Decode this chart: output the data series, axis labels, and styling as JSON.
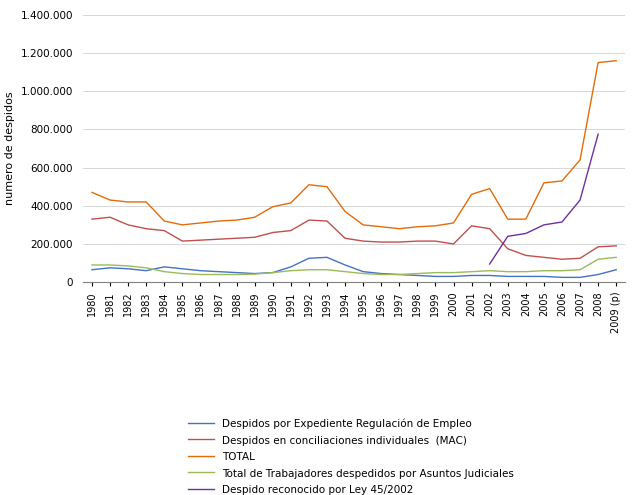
{
  "year_labels": [
    "1980",
    "1981",
    "1982",
    "1983",
    "1984",
    "1985",
    "1986",
    "1987",
    "1988",
    "1989",
    "1990",
    "1991",
    "1992",
    "1993",
    "1994",
    "1995",
    "1996",
    "1997",
    "1998",
    "1999",
    "2000",
    "2001",
    "2002",
    "2003",
    "2004",
    "2005",
    "2006",
    "2007",
    "2008",
    "2009 (p)"
  ],
  "blue": [
    65000,
    75000,
    70000,
    60000,
    80000,
    70000,
    60000,
    55000,
    50000,
    45000,
    50000,
    80000,
    125000,
    130000,
    90000,
    55000,
    45000,
    40000,
    35000,
    30000,
    30000,
    35000,
    35000,
    30000,
    30000,
    30000,
    25000,
    25000,
    40000,
    65000
  ],
  "red": [
    330000,
    340000,
    300000,
    280000,
    270000,
    215000,
    220000,
    225000,
    230000,
    235000,
    260000,
    270000,
    325000,
    320000,
    230000,
    215000,
    210000,
    210000,
    215000,
    215000,
    200000,
    295000,
    280000,
    175000,
    140000,
    130000,
    120000,
    125000,
    185000,
    190000
  ],
  "orange": [
    470000,
    430000,
    420000,
    420000,
    320000,
    300000,
    310000,
    320000,
    325000,
    340000,
    395000,
    415000,
    510000,
    500000,
    370000,
    300000,
    290000,
    280000,
    290000,
    295000,
    310000,
    460000,
    490000,
    330000,
    330000,
    520000,
    530000,
    640000,
    1150000,
    1160000
  ],
  "green": [
    90000,
    90000,
    85000,
    75000,
    55000,
    45000,
    40000,
    40000,
    40000,
    42000,
    50000,
    60000,
    65000,
    65000,
    55000,
    45000,
    40000,
    40000,
    45000,
    50000,
    50000,
    55000,
    60000,
    55000,
    55000,
    60000,
    60000,
    65000,
    120000,
    130000
  ],
  "purple": [
    null,
    null,
    null,
    null,
    null,
    null,
    null,
    null,
    null,
    null,
    null,
    null,
    null,
    null,
    null,
    null,
    null,
    null,
    null,
    null,
    null,
    null,
    95000,
    240000,
    255000,
    300000,
    315000,
    430000,
    775000,
    null
  ],
  "blue_color": "#4472C4",
  "red_color": "#C0504D",
  "orange_color": "#E36C09",
  "green_color": "#9BBB59",
  "purple_color": "#7030A0",
  "ylabel": "numero de despidos",
  "ylim": [
    0,
    1400000
  ],
  "yticks": [
    0,
    200000,
    400000,
    600000,
    800000,
    1000000,
    1200000,
    1400000
  ],
  "legend_labels": [
    "Despidos por Expediente Regulación de Empleo",
    "Despidos en conciliaciones individuales  (MAC)",
    "TOTAL",
    "Total de Trabajadores despedidos por Asuntos Judiciales",
    "Despido reconocido por Ley 45/2002"
  ],
  "fig_width": 6.38,
  "fig_height": 4.95
}
